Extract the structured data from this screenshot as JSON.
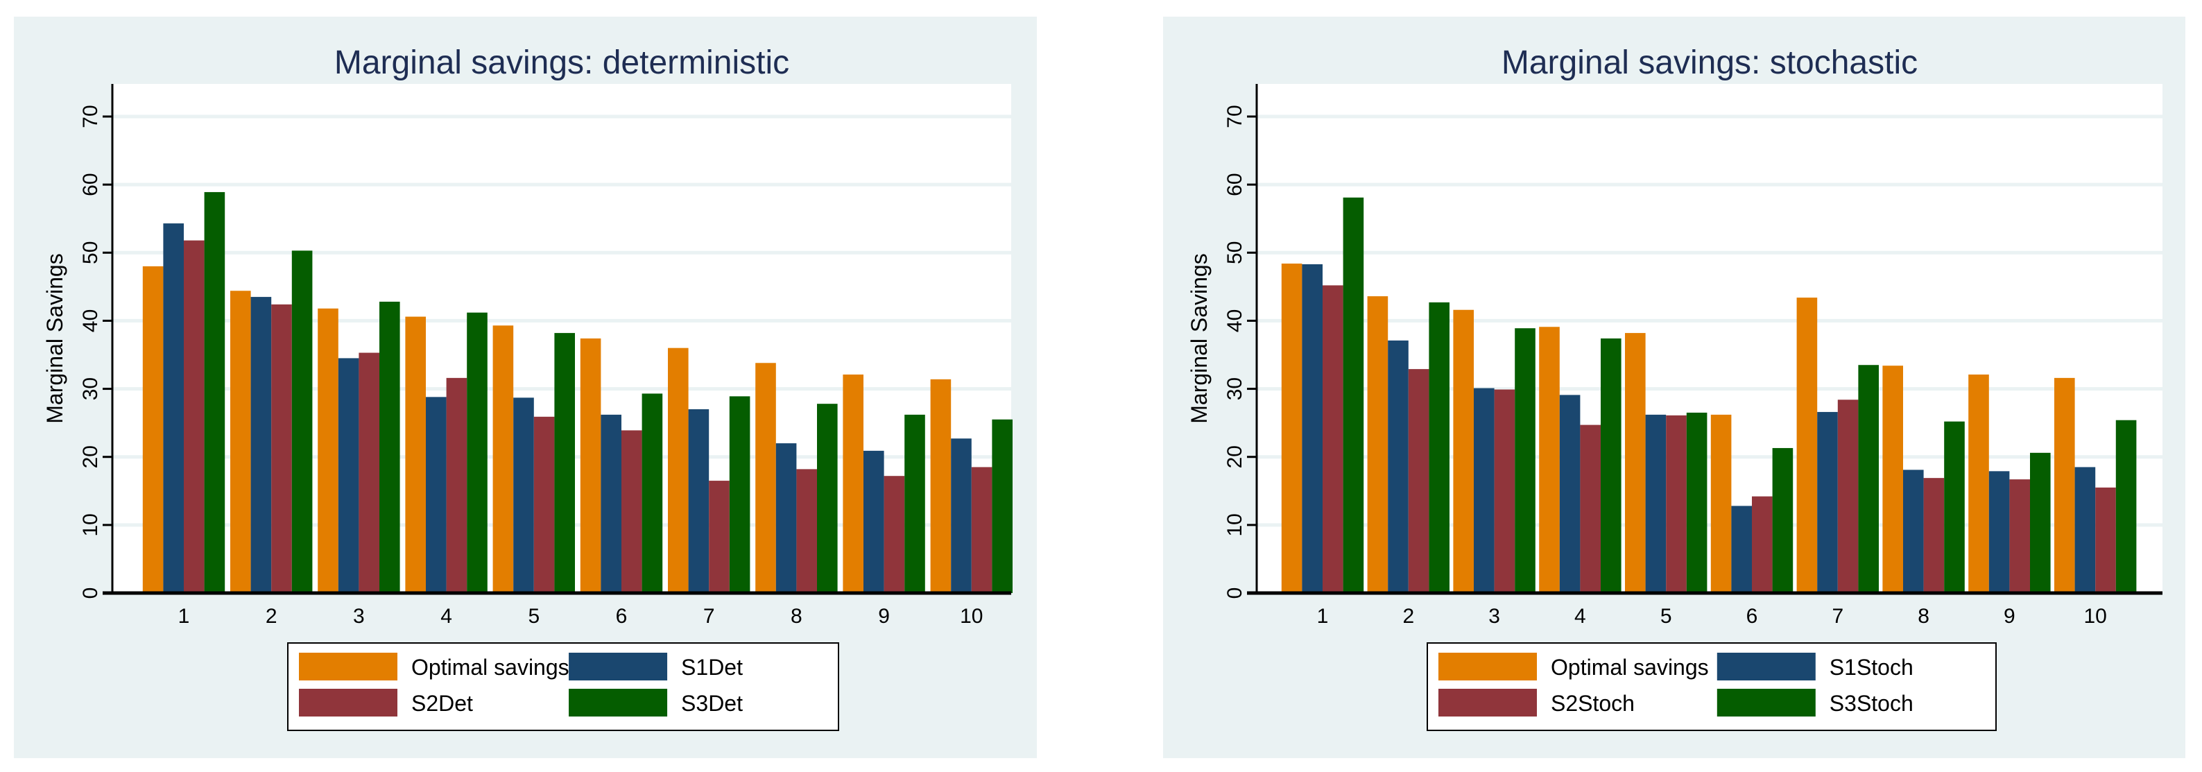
{
  "colors": {
    "background": "#eaf2f3",
    "plot": "#ffffff",
    "grid": "#eaf2f3",
    "title": "#1e2d53"
  },
  "chart_data": [
    {
      "type": "bar",
      "title": "Marginal savings: deterministic",
      "xlabel": "",
      "ylabel": "Marginal Savings",
      "ylim": [
        0,
        75
      ],
      "yticks": [
        0,
        10,
        20,
        30,
        40,
        50,
        60,
        70
      ],
      "grid": true,
      "legend_placement": "bottom",
      "categories": [
        "1",
        "2",
        "3",
        "4",
        "5",
        "6",
        "7",
        "8",
        "9",
        "10"
      ],
      "series": [
        {
          "name": "Optimal savings",
          "color": "#e37e00",
          "values": [
            48.0,
            44.4,
            41.8,
            40.6,
            39.3,
            37.4,
            36.0,
            33.8,
            32.1,
            31.4
          ]
        },
        {
          "name": "S1Det",
          "color": "#1a476f",
          "values": [
            54.3,
            43.5,
            34.5,
            28.8,
            28.7,
            26.2,
            27.0,
            22.0,
            20.9,
            22.7
          ]
        },
        {
          "name": "S2Det",
          "color": "#90353b",
          "values": [
            51.8,
            42.4,
            35.3,
            31.6,
            25.9,
            23.9,
            16.5,
            18.2,
            17.2,
            18.5
          ]
        },
        {
          "name": "S3Det",
          "color": "#055d00",
          "values": [
            58.9,
            50.3,
            42.8,
            41.2,
            38.2,
            29.3,
            28.9,
            27.8,
            26.2,
            25.5
          ]
        }
      ]
    },
    {
      "type": "bar",
      "title": "Marginal savings: stochastic",
      "xlabel": "",
      "ylabel": "Marginal Savings",
      "ylim": [
        0,
        75
      ],
      "yticks": [
        0,
        10,
        20,
        30,
        40,
        50,
        60,
        70
      ],
      "grid": true,
      "legend_placement": "bottom",
      "categories": [
        "1",
        "2",
        "3",
        "4",
        "5",
        "6",
        "7",
        "8",
        "9",
        "10"
      ],
      "series": [
        {
          "name": "Optimal savings",
          "color": "#e37e00",
          "values": [
            48.4,
            43.6,
            41.6,
            39.1,
            38.2,
            26.2,
            43.4,
            33.4,
            32.1,
            31.6
          ]
        },
        {
          "name": "S1Stoch",
          "color": "#1a476f",
          "values": [
            48.3,
            37.1,
            30.1,
            29.1,
            26.2,
            12.8,
            26.6,
            18.1,
            17.9,
            18.5
          ]
        },
        {
          "name": "S2Stoch",
          "color": "#90353b",
          "values": [
            45.2,
            32.9,
            29.9,
            24.7,
            26.1,
            14.2,
            28.4,
            16.9,
            16.7,
            15.5
          ]
        },
        {
          "name": "S3Stoch",
          "color": "#055d00",
          "values": [
            58.1,
            42.7,
            38.9,
            37.4,
            26.5,
            21.3,
            33.5,
            25.2,
            20.6,
            25.4
          ]
        }
      ]
    }
  ]
}
